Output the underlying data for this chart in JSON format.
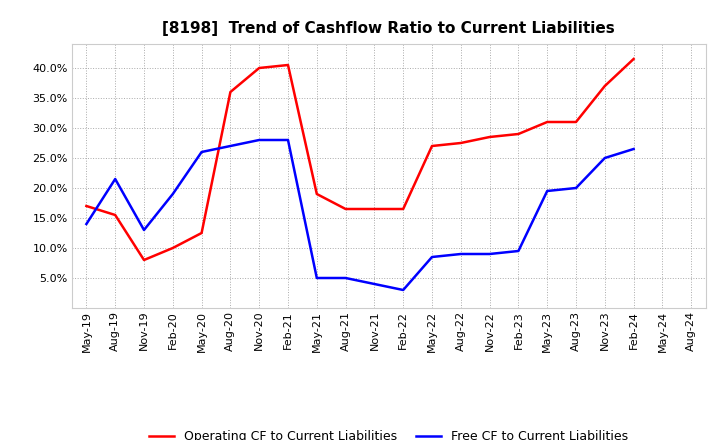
{
  "title": "[8198]  Trend of Cashflow Ratio to Current Liabilities",
  "x_labels": [
    "May-19",
    "Aug-19",
    "Nov-19",
    "Feb-20",
    "May-20",
    "Aug-20",
    "Nov-20",
    "Feb-21",
    "May-21",
    "Aug-21",
    "Nov-21",
    "Feb-22",
    "May-22",
    "Aug-22",
    "Nov-22",
    "Feb-23",
    "May-23",
    "Aug-23",
    "Nov-23",
    "Feb-24",
    "May-24",
    "Aug-24"
  ],
  "operating_cf": [
    0.17,
    0.155,
    0.08,
    0.1,
    0.125,
    0.36,
    0.4,
    0.405,
    0.19,
    0.165,
    0.165,
    0.165,
    0.27,
    0.275,
    0.285,
    0.29,
    0.31,
    0.31,
    0.37,
    0.415,
    null,
    null
  ],
  "free_cf": [
    0.14,
    0.215,
    0.13,
    0.19,
    0.26,
    0.27,
    0.28,
    0.28,
    0.05,
    0.05,
    0.04,
    0.03,
    0.085,
    0.09,
    0.09,
    0.095,
    0.195,
    0.2,
    0.25,
    0.265,
    null,
    null
  ],
  "ylim": [
    0.0,
    0.44
  ],
  "yticks": [
    0.05,
    0.1,
    0.15,
    0.2,
    0.25,
    0.3,
    0.35,
    0.4
  ],
  "operating_color": "#FF0000",
  "free_color": "#0000FF",
  "background_color": "#FFFFFF",
  "plot_bg_color": "#FFFFFF",
  "grid_color": "#AAAAAA",
  "legend_labels": [
    "Operating CF to Current Liabilities",
    "Free CF to Current Liabilities"
  ],
  "title_fontsize": 11,
  "tick_fontsize": 8,
  "legend_fontsize": 9
}
